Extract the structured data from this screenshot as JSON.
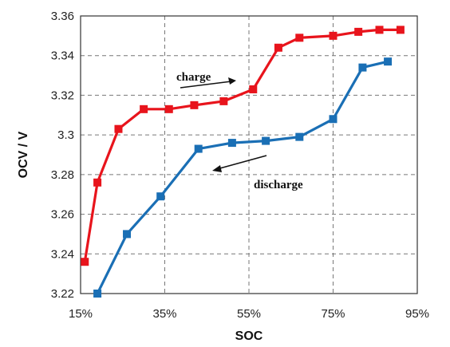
{
  "chart_data": {
    "type": "line",
    "xlabel": "SOC",
    "ylabel": "OCV / V",
    "xlim": [
      15,
      95
    ],
    "ylim": [
      3.22,
      3.36
    ],
    "grid": true,
    "x_ticks": [
      15,
      35,
      55,
      75,
      95
    ],
    "x_tick_labels": [
      "15%",
      "35%",
      "55%",
      "75%",
      "95%"
    ],
    "y_ticks": [
      3.22,
      3.24,
      3.26,
      3.28,
      3.3,
      3.32,
      3.34,
      3.36
    ],
    "y_tick_labels": [
      "3.22",
      "3.24",
      "3.26",
      "3.28",
      "3.3",
      "3.32",
      "3.34",
      "3.36"
    ],
    "series": [
      {
        "name": "charge",
        "color": "#e8141c",
        "marker": "square",
        "x": [
          16,
          19,
          24,
          30,
          36,
          42,
          49,
          56,
          62,
          67,
          75,
          81,
          86,
          91
        ],
        "y": [
          3.236,
          3.276,
          3.303,
          3.313,
          3.313,
          3.315,
          3.317,
          3.323,
          3.344,
          3.349,
          3.35,
          3.352,
          3.353,
          3.353
        ]
      },
      {
        "name": "discharge",
        "color": "#1a6fb5",
        "marker": "square",
        "x": [
          19,
          26,
          34,
          43,
          51,
          59,
          67,
          75,
          82,
          88
        ],
        "y": [
          3.22,
          3.25,
          3.269,
          3.293,
          3.296,
          3.297,
          3.299,
          3.308,
          3.334,
          3.337
        ]
      }
    ],
    "annotations": [
      {
        "text": "charge",
        "arrow": "right"
      },
      {
        "text": "discharge",
        "arrow": "left"
      }
    ]
  }
}
